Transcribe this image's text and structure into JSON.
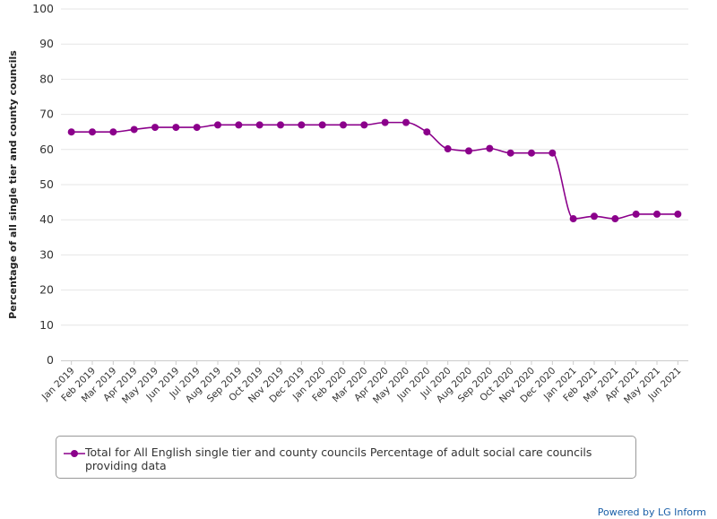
{
  "chart_data": {
    "type": "line",
    "title": "",
    "xlabel": "",
    "ylabel": "Percentage of all single tier and county councils",
    "ylim": [
      0,
      100
    ],
    "yticks": [
      0,
      10,
      20,
      30,
      40,
      50,
      60,
      70,
      80,
      90,
      100
    ],
    "grid": true,
    "legend_position": "bottom",
    "categories": [
      "Jan 2019",
      "Feb 2019",
      "Mar 2019",
      "Apr 2019",
      "May 2019",
      "Jun 2019",
      "Jul 2019",
      "Aug 2019",
      "Sep 2019",
      "Oct 2019",
      "Nov 2019",
      "Dec 2019",
      "Jan 2020",
      "Feb 2020",
      "Mar 2020",
      "Apr 2020",
      "May 2020",
      "Jun 2020",
      "Jul 2020",
      "Aug 2020",
      "Sep 2020",
      "Oct 2020",
      "Nov 2020",
      "Dec 2020",
      "Jan 2021",
      "Feb 2021",
      "Mar 2021",
      "Apr 2021",
      "May 2021",
      "Jun 2021"
    ],
    "series": [
      {
        "name": "Total for All English single tier and county councils Percentage of adult social care councils providing data",
        "color": "#8b008b",
        "values": [
          65,
          65,
          65,
          65.7,
          66.3,
          66.3,
          66.3,
          67,
          67,
          67,
          67,
          67,
          67,
          67,
          67,
          67.7,
          67.7,
          65,
          60.2,
          59.6,
          60.3,
          59,
          59,
          59,
          40.3,
          41,
          40.3,
          41.6,
          41.6,
          41.6
        ]
      }
    ]
  },
  "credit": {
    "text": "Powered by LG Inform"
  }
}
